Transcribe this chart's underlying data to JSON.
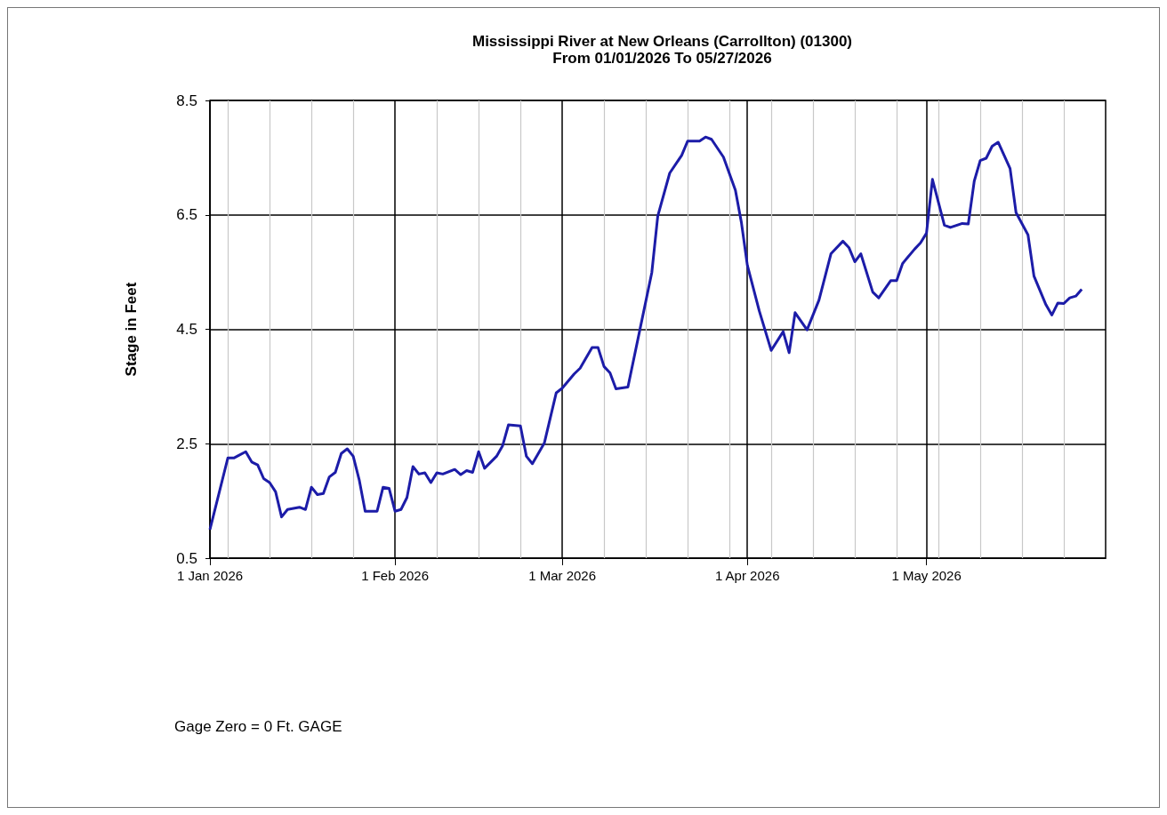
{
  "chart_data": {
    "type": "line",
    "title": "Mississippi River at New Orleans (Carrollton) (01300)",
    "subtitle": "From 01/01/2026 To 05/27/2026",
    "ylabel": "Stage in Feet",
    "annotations": [
      "Gage Zero = 0 Ft. GAGE"
    ],
    "x": [
      "2026-01-01",
      "2026-01-04",
      "2026-01-05",
      "2026-01-07",
      "2026-01-08",
      "2026-01-09",
      "2026-01-10",
      "2026-01-11",
      "2026-01-12",
      "2026-01-13",
      "2026-01-14",
      "2026-01-16",
      "2026-01-17",
      "2026-01-18",
      "2026-01-19",
      "2026-01-20",
      "2026-01-21",
      "2026-01-22",
      "2026-01-23",
      "2026-01-24",
      "2026-01-25",
      "2026-01-26",
      "2026-01-27",
      "2026-01-29",
      "2026-01-30",
      "2026-01-31",
      "2026-02-01",
      "2026-02-02",
      "2026-02-03",
      "2026-02-04",
      "2026-02-05",
      "2026-02-06",
      "2026-02-07",
      "2026-02-08",
      "2026-02-09",
      "2026-02-11",
      "2026-02-12",
      "2026-02-13",
      "2026-02-14",
      "2026-02-15",
      "2026-02-16",
      "2026-02-18",
      "2026-02-19",
      "2026-02-20",
      "2026-02-22",
      "2026-02-23",
      "2026-02-24",
      "2026-02-26",
      "2026-02-28",
      "2026-03-01",
      "2026-03-03",
      "2026-03-04",
      "2026-03-06",
      "2026-03-07",
      "2026-03-08",
      "2026-03-09",
      "2026-03-10",
      "2026-03-12",
      "2026-03-14",
      "2026-03-16",
      "2026-03-17",
      "2026-03-19",
      "2026-03-21",
      "2026-03-22",
      "2026-03-24",
      "2026-03-25",
      "2026-03-26",
      "2026-03-28",
      "2026-03-30",
      "2026-03-31",
      "2026-04-01",
      "2026-04-03",
      "2026-04-05",
      "2026-04-07",
      "2026-04-08",
      "2026-04-09",
      "2026-04-11",
      "2026-04-13",
      "2026-04-15",
      "2026-04-17",
      "2026-04-18",
      "2026-04-19",
      "2026-04-20",
      "2026-04-22",
      "2026-04-23",
      "2026-04-25",
      "2026-04-26",
      "2026-04-27",
      "2026-04-29",
      "2026-04-30",
      "2026-05-01",
      "2026-05-02",
      "2026-05-04",
      "2026-05-05",
      "2026-05-07",
      "2026-05-08",
      "2026-05-09",
      "2026-05-10",
      "2026-05-11",
      "2026-05-12",
      "2026-05-13",
      "2026-05-15",
      "2026-05-16",
      "2026-05-18",
      "2026-05-19",
      "2026-05-21",
      "2026-05-22",
      "2026-05-23",
      "2026-05-24",
      "2026-05-25",
      "2026-05-26",
      "2026-05-27"
    ],
    "series": [
      {
        "color": "#1c1ca8",
        "values": [
          1.0,
          2.25,
          2.25,
          2.36,
          2.18,
          2.13,
          1.89,
          1.82,
          1.66,
          1.22,
          1.35,
          1.39,
          1.35,
          1.74,
          1.61,
          1.63,
          1.92,
          2.0,
          2.33,
          2.41,
          2.28,
          1.87,
          1.32,
          1.32,
          1.74,
          1.72,
          1.32,
          1.35,
          1.56,
          2.1,
          1.97,
          1.99,
          1.82,
          1.99,
          1.97,
          2.05,
          1.96,
          2.03,
          2.0,
          2.36,
          2.07,
          2.28,
          2.46,
          2.83,
          2.81,
          2.28,
          2.15,
          2.51,
          3.39,
          3.47,
          3.72,
          3.82,
          4.18,
          4.18,
          3.85,
          3.74,
          3.46,
          3.49,
          4.49,
          5.49,
          6.48,
          7.23,
          7.54,
          7.79,
          7.79,
          7.86,
          7.82,
          7.51,
          6.93,
          6.37,
          5.62,
          4.82,
          4.13,
          4.46,
          4.09,
          4.79,
          4.49,
          5.01,
          5.82,
          6.04,
          5.93,
          5.68,
          5.82,
          5.15,
          5.05,
          5.35,
          5.35,
          5.65,
          5.9,
          6.01,
          6.18,
          7.12,
          6.32,
          6.28,
          6.35,
          6.34,
          7.09,
          7.45,
          7.49,
          7.7,
          7.77,
          7.31,
          6.54,
          6.15,
          5.43,
          4.93,
          4.75,
          4.96,
          4.95,
          5.05,
          5.08,
          5.2
        ]
      }
    ],
    "xlim": [
      "2026-01-01",
      "2026-05-31"
    ],
    "xticks": [
      {
        "value": "2026-01-01",
        "label": "1 Jan 2026"
      },
      {
        "value": "2026-01-04",
        "label": null
      },
      {
        "value": "2026-01-11",
        "label": null
      },
      {
        "value": "2026-01-18",
        "label": null
      },
      {
        "value": "2026-01-25",
        "label": null
      },
      {
        "value": "2026-02-01",
        "label": "1 Feb 2026"
      },
      {
        "value": "2026-02-08",
        "label": null
      },
      {
        "value": "2026-02-15",
        "label": null
      },
      {
        "value": "2026-02-22",
        "label": null
      },
      {
        "value": "2026-03-01",
        "label": "1 Mar 2026"
      },
      {
        "value": "2026-03-08",
        "label": null
      },
      {
        "value": "2026-03-15",
        "label": null
      },
      {
        "value": "2026-03-22",
        "label": null
      },
      {
        "value": "2026-03-29",
        "label": null
      },
      {
        "value": "2026-04-01",
        "label": "1 Apr 2026"
      },
      {
        "value": "2026-04-05",
        "label": null
      },
      {
        "value": "2026-04-12",
        "label": null
      },
      {
        "value": "2026-04-19",
        "label": null
      },
      {
        "value": "2026-04-26",
        "label": null
      },
      {
        "value": "2026-05-01",
        "label": "1 May 2026"
      },
      {
        "value": "2026-05-03",
        "label": null
      },
      {
        "value": "2026-05-10",
        "label": null
      },
      {
        "value": "2026-05-17",
        "label": null
      },
      {
        "value": "2026-05-24",
        "label": null
      }
    ],
    "ylim": [
      0.5,
      8.5
    ],
    "yticks": [
      0.5,
      2.5,
      4.5,
      6.5,
      8.5
    ],
    "grid": true
  }
}
